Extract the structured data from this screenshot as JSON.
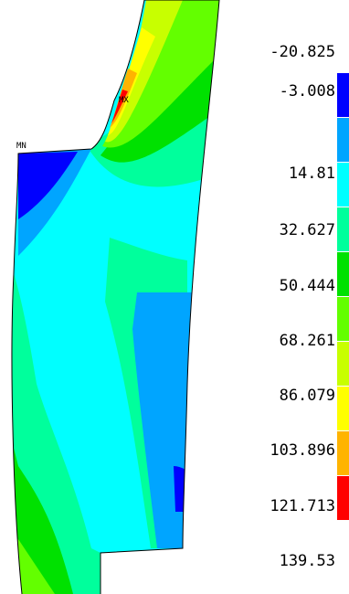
{
  "markers": {
    "min": "MN",
    "max": "MX"
  },
  "legend": {
    "levels": [
      {
        "label": "-20.825",
        "color": "#0000ff"
      },
      {
        "label": "-3.008",
        "color": "#00a5ff"
      },
      {
        "label": "14.81",
        "color": "#00ffff"
      },
      {
        "label": "32.627",
        "color": "#00ff9c"
      },
      {
        "label": "50.444",
        "color": "#00e100"
      },
      {
        "label": "68.261",
        "color": "#63ff00"
      },
      {
        "label": "86.079",
        "color": "#c8ff00"
      },
      {
        "label": "103.896",
        "color": "#ffff00"
      },
      {
        "label": "121.713",
        "color": "#ffb400"
      },
      {
        "label": "139.53",
        "color": "#ff0000"
      }
    ]
  }
}
